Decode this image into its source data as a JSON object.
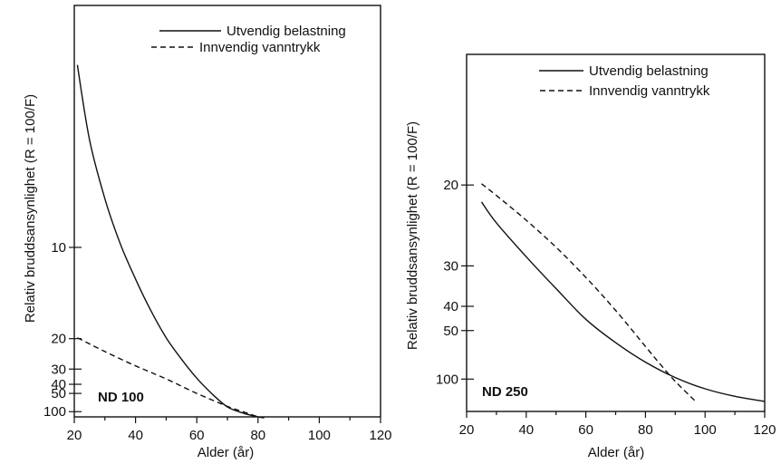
{
  "chart_data": [
    {
      "type": "line",
      "tag": "ND 100",
      "xlabel": "Alder (år)",
      "ylabel": "Relativ bruddsansynlighet (R = 100/F)",
      "xlim": [
        20,
        120
      ],
      "x_ticks": [
        20,
        40,
        60,
        80,
        100,
        120
      ],
      "y_ticks": [
        10,
        20,
        30,
        40,
        50,
        100
      ],
      "y_scale": "reciprocal",
      "ylim": [
        4.3,
        140
      ],
      "legend_position": "top-right",
      "series": [
        {
          "name": "Utvendig belastning",
          "style": "solid",
          "x": [
            21,
            25,
            30,
            35,
            40,
            45,
            50,
            55,
            60,
            65,
            70,
            75,
            80,
            82
          ],
          "y": [
            5.0,
            6.3,
            7.9,
            9.8,
            12.1,
            15.3,
            19.8,
            25.8,
            35.3,
            50.7,
            79.2,
            108,
            140,
            152
          ]
        },
        {
          "name": "Innvendig vanntrykk",
          "style": "dashed",
          "x": [
            21,
            30,
            40,
            50,
            60,
            70,
            75,
            80
          ],
          "y": [
            19.8,
            23.3,
            28.5,
            35.8,
            50.0,
            77.4,
            100,
            140
          ]
        }
      ]
    },
    {
      "type": "line",
      "tag": "ND 250",
      "xlabel": "Alder (år)",
      "ylabel": "Relativ bruddsansynlighet (R = 100/F)",
      "xlim": [
        20,
        120
      ],
      "x_ticks": [
        20,
        40,
        60,
        80,
        100,
        120
      ],
      "y_ticks": [
        20,
        30,
        40,
        50,
        100
      ],
      "y_scale": "reciprocal",
      "ylim": [
        13,
        300
      ],
      "legend_position": "top-right",
      "series": [
        {
          "name": "Utvendig belastning",
          "style": "solid",
          "x": [
            25,
            30,
            40,
            50,
            60,
            70,
            80,
            90,
            100,
            110,
            120
          ],
          "y": [
            21.5,
            23.7,
            28.4,
            34.9,
            44.8,
            57.1,
            74.1,
            96.9,
            125,
            155,
            185
          ]
        },
        {
          "name": "Innvendig vanntrykk",
          "style": "dashed",
          "x": [
            25,
            30,
            40,
            50,
            60,
            70,
            80,
            85,
            90,
            95,
            97
          ],
          "y": [
            19.9,
            20.9,
            23.4,
            26.9,
            32.3,
            41.4,
            59.8,
            76.8,
            105,
            154,
            189
          ]
        }
      ]
    }
  ]
}
